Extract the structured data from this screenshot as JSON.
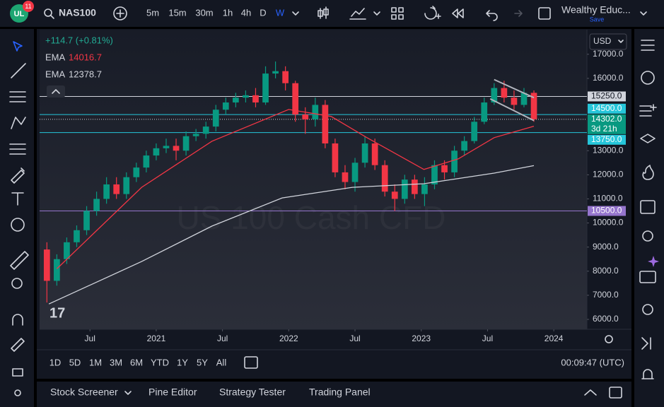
{
  "toolbar": {
    "badge": "11",
    "symbol": "NAS100",
    "intervals": [
      "5m",
      "15m",
      "30m",
      "1h",
      "4h",
      "D",
      "W"
    ],
    "active_interval": "W",
    "layout_name": "Wealthy Educ...",
    "save": "Save"
  },
  "chart_data": {
    "type": "candlestick",
    "watermark": "US 100 Cash CFD",
    "legend_change": "+114.7 (+0.81%)",
    "currency": "USD",
    "up_color": "#089981",
    "down_color": "#f23645",
    "x": [
      2020.175,
      2020.25,
      2020.325,
      2020.4,
      2020.475,
      2020.55,
      2020.625,
      2020.7,
      2020.775,
      2020.85,
      2020.925,
      2021.0,
      2021.075,
      2021.15,
      2021.225,
      2021.3,
      2021.375,
      2021.45,
      2021.525,
      2021.6,
      2021.675,
      2021.75,
      2021.825,
      2021.9,
      2021.975,
      2022.05,
      2022.125,
      2022.2,
      2022.275,
      2022.35,
      2022.425,
      2022.5,
      2022.575,
      2022.65,
      2022.725,
      2022.8,
      2022.875,
      2022.95,
      2023.025,
      2023.1,
      2023.175,
      2023.25,
      2023.325,
      2023.4,
      2023.475,
      2023.55,
      2023.625,
      2023.7,
      2023.775,
      2023.85
    ],
    "open": [
      8900,
      7600,
      8500,
      9200,
      9700,
      10500,
      11000,
      11600,
      11200,
      11900,
      12300,
      12800,
      13100,
      13200,
      13000,
      13600,
      13700,
      14000,
      14700,
      15000,
      15200,
      15300,
      15000,
      16200,
      16300,
      15800,
      14500,
      14300,
      14900,
      13300,
      12100,
      11700,
      12500,
      13300,
      12400,
      11300,
      11000,
      11800,
      11200,
      11600,
      12400,
      12100,
      13000,
      13400,
      14200,
      15000,
      15600,
      15200,
      14900,
      15400
    ],
    "high": [
      9200,
      8700,
      9400,
      9900,
      10700,
      11300,
      11900,
      11900,
      12100,
      12500,
      13000,
      13300,
      13500,
      13500,
      13800,
      13900,
      14200,
      14900,
      15200,
      15400,
      15500,
      15600,
      16500,
      16700,
      16500,
      15900,
      14800,
      15200,
      15100,
      13500,
      12400,
      12700,
      13600,
      13500,
      12600,
      11600,
      12000,
      12000,
      11900,
      12600,
      12600,
      13200,
      13600,
      14400,
      15200,
      15800,
      15900,
      15500,
      15600,
      15500
    ],
    "low": [
      6700,
      7400,
      8300,
      9000,
      9500,
      10300,
      10800,
      11000,
      11000,
      11700,
      12100,
      12600,
      12900,
      12600,
      12800,
      13400,
      13500,
      13800,
      14500,
      14800,
      15000,
      14800,
      14900,
      16000,
      15500,
      14200,
      13700,
      14000,
      13100,
      11900,
      11400,
      11300,
      12300,
      12200,
      11100,
      10500,
      10800,
      11000,
      10700,
      11400,
      11800,
      11900,
      12800,
      13300,
      14100,
      14900,
      15000,
      14700,
      14800,
      14200
    ],
    "close": [
      7600,
      8500,
      9200,
      9700,
      10500,
      11000,
      11600,
      11200,
      11900,
      12300,
      12800,
      13100,
      13200,
      13000,
      13600,
      13700,
      14000,
      14700,
      15000,
      15200,
      15300,
      15000,
      16200,
      16300,
      15800,
      14500,
      14300,
      14900,
      13300,
      12100,
      11700,
      12500,
      13300,
      12400,
      11300,
      11000,
      11800,
      11200,
      11600,
      12400,
      12100,
      13000,
      13400,
      14200,
      15000,
      15600,
      15200,
      14900,
      15400,
      14302
    ],
    "indicators": [
      {
        "name": "EMA",
        "value": 14016.7,
        "color": "#f23645",
        "x": [
          2020.25,
          2020.89,
          2021.42,
          2022.0,
          2022.32,
          2022.59,
          2023.02,
          2023.28,
          2023.55,
          2023.85
        ],
        "values": [
          8100,
          11480,
          13390,
          14710,
          14420,
          13540,
          12220,
          12660,
          13540,
          14016.7
        ]
      },
      {
        "name": "EMA",
        "value": 12378.7,
        "color": "#d1d4dc",
        "x": [
          2020.19,
          2020.89,
          2021.42,
          2021.95,
          2022.48,
          2023.02,
          2023.55,
          2023.85
        ],
        "values": [
          6640,
          8400,
          9870,
          11040,
          11480,
          11630,
          12070,
          12378.7
        ]
      }
    ],
    "price_lines": [
      {
        "value": 15250,
        "label": "15250.0",
        "color": "#d1d4dc"
      },
      {
        "value": 14500,
        "label": "14500.0",
        "color": "#26c6da"
      },
      {
        "value": 13750,
        "label": "13750.0",
        "color": "#26c6da"
      },
      {
        "value": 10500,
        "label": "10500.0",
        "color": "#9575cd"
      }
    ],
    "last_price": {
      "value": 14302,
      "label": "14302.0",
      "countdown": "3d 21h",
      "color": "#089981"
    },
    "trendlines": [
      {
        "x": [
          2023.55,
          2023.85
        ],
        "y": [
          15950,
          15200
        ]
      },
      {
        "x": [
          2023.52,
          2023.85
        ],
        "y": [
          15150,
          14250
        ]
      }
    ],
    "xlim": [
      2020.12,
      2024.25
    ],
    "ylim": [
      5590,
      18020
    ],
    "xticks": [
      {
        "value": 2020.5,
        "label": "Jul"
      },
      2021,
      {
        "value": 2021.5,
        "label": "Jul"
      },
      2022,
      {
        "value": 2022.5,
        "label": "Jul"
      },
      2023,
      {
        "value": 2023.5,
        "label": "Jul"
      },
      2024
    ],
    "yticks": [
      {
        "value": 17000,
        "label": "17000.0"
      },
      {
        "value": 16000,
        "label": "16000.0"
      },
      {
        "value": 13000,
        "label": "13000.0"
      },
      {
        "value": 12000,
        "label": "12000.0"
      },
      {
        "value": 11000,
        "label": "11000.0"
      },
      {
        "value": 10000,
        "label": "10000.0"
      },
      {
        "value": 9000,
        "label": "9000.0"
      },
      {
        "value": 8000,
        "label": "8000.0"
      },
      {
        "value": 7000,
        "label": "7000.0"
      },
      {
        "value": 6000,
        "label": "6000.0"
      }
    ],
    "grid": false
  },
  "bottom_bar": {
    "ranges": [
      "1D",
      "5D",
      "1M",
      "3M",
      "6M",
      "YTD",
      "1Y",
      "5Y",
      "All"
    ],
    "clock": "00:09:47 (UTC)"
  },
  "panel_tabs": [
    "Stock Screener",
    "Pine Editor",
    "Strategy Tester",
    "Trading Panel"
  ]
}
